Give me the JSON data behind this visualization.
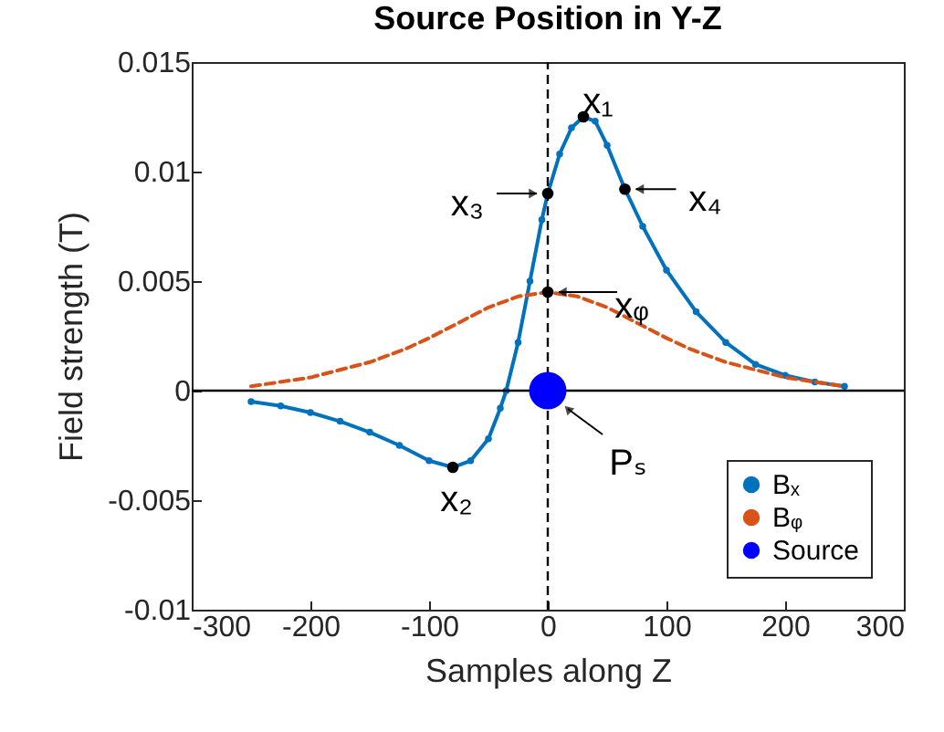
{
  "chart_data": {
    "type": "line",
    "title": "Source Position in Y-Z",
    "xlabel": "Samples along Z",
    "ylabel": "Field strength (T)",
    "xlim": [
      -300,
      300
    ],
    "xticks": [
      -300,
      -200,
      -100,
      0,
      100,
      200,
      300
    ],
    "ylim": [
      -0.01,
      0.015
    ],
    "yticks": [
      -0.01,
      -0.005,
      0,
      0.005,
      0.01,
      0.015
    ],
    "grid": false,
    "legend": "bottom right",
    "series": [
      {
        "name": "Bₓ",
        "color": "#0072bd",
        "marker": "circle",
        "line_style": "solid",
        "x": [
          -250,
          -225,
          -200,
          -175,
          -150,
          -125,
          -100,
          -80,
          -65,
          -50,
          -40,
          -35,
          -25,
          -15,
          -5,
          0,
          10,
          20,
          30,
          40,
          50,
          65,
          80,
          100,
          125,
          150,
          175,
          200,
          225,
          250
        ],
        "values": [
          -0.0005,
          -0.0007,
          -0.001,
          -0.0014,
          -0.0019,
          -0.0025,
          -0.0032,
          -0.0035,
          -0.0032,
          -0.0022,
          -0.0008,
          0,
          0.0022,
          0.005,
          0.0078,
          0.009,
          0.0108,
          0.012,
          0.0125,
          0.0123,
          0.0112,
          0.0092,
          0.0075,
          0.0055,
          0.0036,
          0.0022,
          0.0012,
          0.0007,
          0.0004,
          0.0002
        ]
      },
      {
        "name": "Bᵩ",
        "color": "#d95319",
        "marker": "none",
        "line_style": "dashed",
        "x": [
          -250,
          -200,
          -150,
          -120,
          -100,
          -75,
          -50,
          -25,
          0,
          25,
          50,
          75,
          100,
          120,
          150,
          200,
          250
        ],
        "values": [
          0.0002,
          0.0006,
          0.0013,
          0.0019,
          0.0024,
          0.0031,
          0.0038,
          0.0043,
          0.0045,
          0.0043,
          0.0038,
          0.0031,
          0.0024,
          0.0019,
          0.0013,
          0.0006,
          0.0002
        ]
      },
      {
        "name": "Source",
        "type": "scatter",
        "color": "#0000ff",
        "marker": "circle",
        "x": [
          0
        ],
        "values": [
          0
        ]
      },
      {
        "type": "scatter",
        "color": "#000000",
        "marker": "circle",
        "x": [
          30,
          -80,
          0,
          65,
          0
        ],
        "values": [
          0.0125,
          -0.0035,
          0.009,
          0.0092,
          0.0045
        ]
      }
    ],
    "ref_lines": [
      {
        "axis": "y",
        "value": 0,
        "color": "#000000",
        "line_style": "solid"
      },
      {
        "axis": "x",
        "value": 0,
        "color": "#000000",
        "line_style": "dashed"
      }
    ],
    "annotations": [
      {
        "text": "x₁",
        "x": 30,
        "y": 0.0125
      },
      {
        "text": "x₂",
        "x": -80,
        "y": -0.0035
      },
      {
        "text": "x₃",
        "x": 0,
        "y": 0.009
      },
      {
        "text": "x₄",
        "x": 65,
        "y": 0.0092
      },
      {
        "text": "xᵩ",
        "x": 0,
        "y": 0.0045
      },
      {
        "text": "Pₛ",
        "x": 0,
        "y": 0
      }
    ]
  }
}
